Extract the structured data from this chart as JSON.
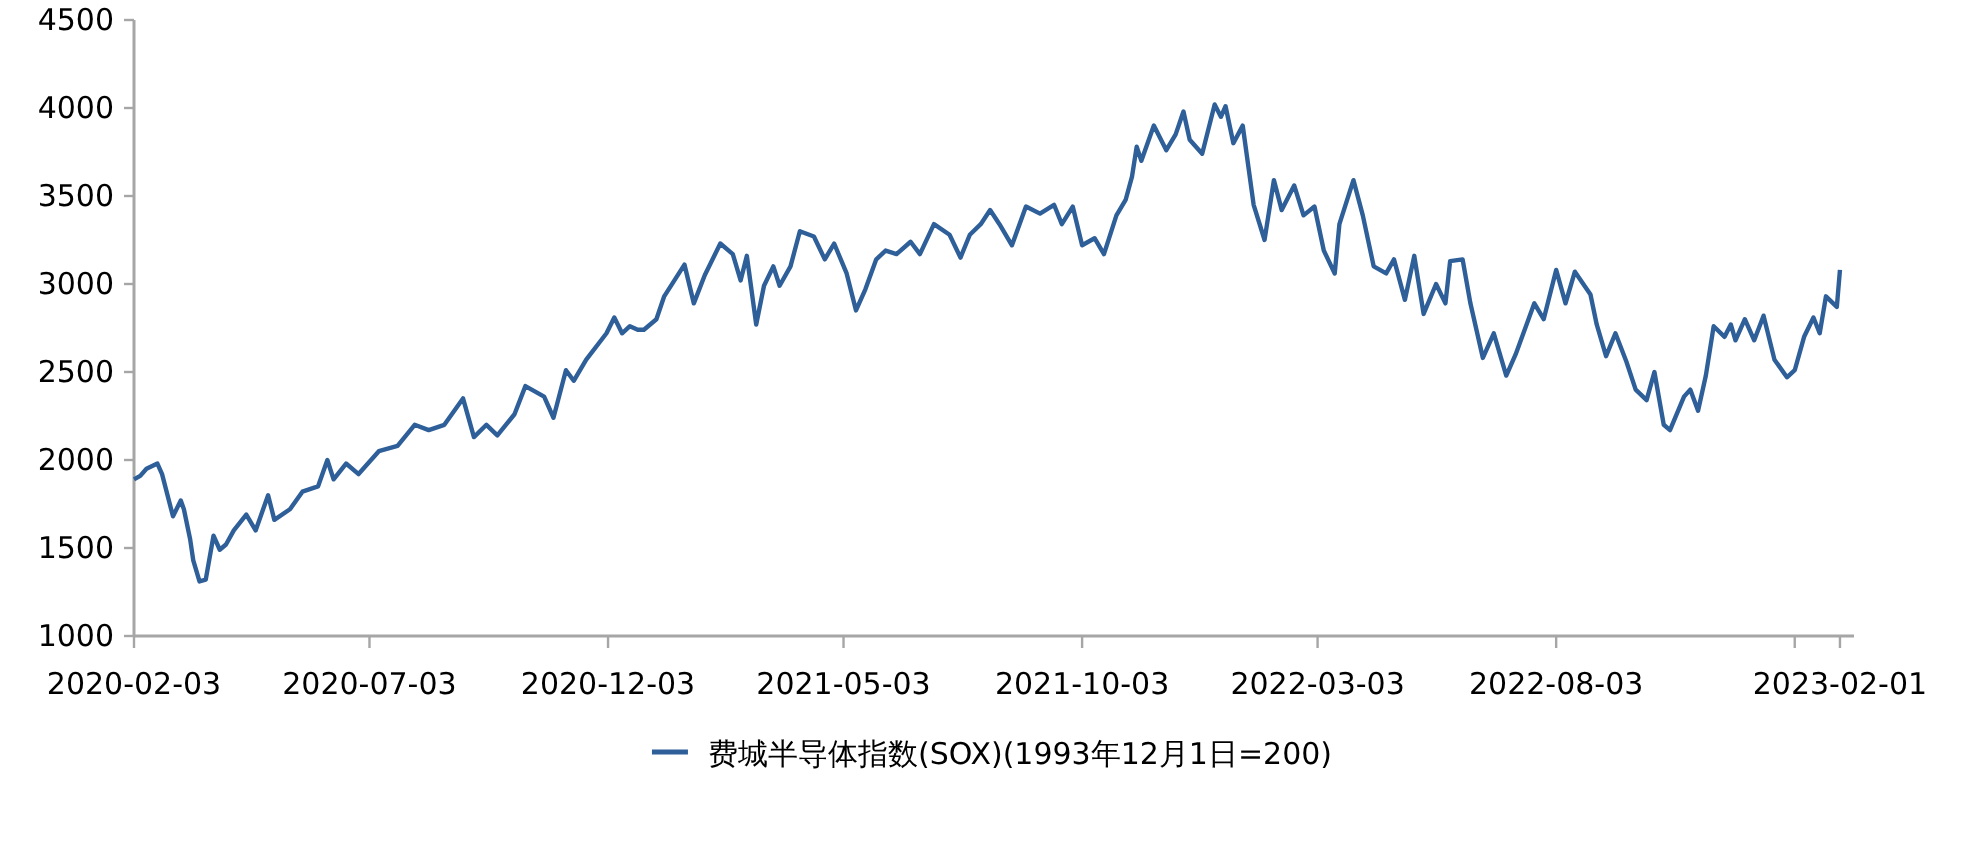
{
  "chart_data": {
    "type": "line",
    "legend": "bottom",
    "x": [
      "2020-02-03",
      "2020-02-07",
      "2020-02-11",
      "2020-02-18",
      "2020-02-21",
      "2020-02-28",
      "2020-03-04",
      "2020-03-06",
      "2020-03-10",
      "2020-03-12",
      "2020-03-16",
      "2020-03-20",
      "2020-03-25",
      "2020-03-29",
      "2020-04-02",
      "2020-04-07",
      "2020-04-15",
      "2020-04-21",
      "2020-04-29",
      "2020-05-03",
      "2020-05-13",
      "2020-05-21",
      "2020-05-31",
      "2020-06-06",
      "2020-06-10",
      "2020-06-18",
      "2020-06-26",
      "2020-07-09",
      "2020-07-21",
      "2020-08-01",
      "2020-08-10",
      "2020-08-20",
      "2020-09-01",
      "2020-09-08",
      "2020-09-16",
      "2020-09-23",
      "2020-10-04",
      "2020-10-11",
      "2020-10-23",
      "2020-10-29",
      "2020-11-06",
      "2020-11-11",
      "2020-11-19",
      "2020-12-02",
      "2020-12-07",
      "2020-12-12",
      "2020-12-17",
      "2020-12-22",
      "2020-12-26",
      "2021-01-03",
      "2021-01-08",
      "2021-01-21",
      "2021-01-27",
      "2021-02-03",
      "2021-02-13",
      "2021-02-21",
      "2021-02-26",
      "2021-03-02",
      "2021-03-08",
      "2021-03-13",
      "2021-03-19",
      "2021-03-23",
      "2021-03-30",
      "2021-04-05",
      "2021-04-14",
      "2021-04-21",
      "2021-04-27",
      "2021-05-05",
      "2021-05-11",
      "2021-05-17",
      "2021-05-24",
      "2021-05-30",
      "2021-06-06",
      "2021-06-15",
      "2021-06-21",
      "2021-06-30",
      "2021-07-10",
      "2021-07-17",
      "2021-07-23",
      "2021-07-30",
      "2021-08-05",
      "2021-08-11",
      "2021-08-19",
      "2021-08-28",
      "2021-09-06",
      "2021-09-15",
      "2021-09-20",
      "2021-09-27",
      "2021-10-03",
      "2021-10-11",
      "2021-10-17",
      "2021-10-25",
      "2021-10-31",
      "2021-11-04",
      "2021-11-07",
      "2021-11-10",
      "2021-11-18",
      "2021-11-26",
      "2021-12-02",
      "2021-12-07",
      "2021-12-11",
      "2021-12-19",
      "2021-12-27",
      "2021-12-31",
      "2022-01-03",
      "2022-01-08",
      "2022-01-14",
      "2022-01-21",
      "2022-01-28",
      "2022-02-03",
      "2022-02-08",
      "2022-02-16",
      "2022-02-22",
      "2022-03-01",
      "2022-03-07",
      "2022-03-14",
      "2022-03-17",
      "2022-03-26",
      "2022-04-01",
      "2022-04-08",
      "2022-04-16",
      "2022-04-21",
      "2022-04-28",
      "2022-05-04",
      "2022-05-10",
      "2022-05-18",
      "2022-05-24",
      "2022-05-27",
      "2022-06-04",
      "2022-06-09",
      "2022-06-17",
      "2022-06-24",
      "2022-07-02",
      "2022-07-08",
      "2022-07-20",
      "2022-07-26",
      "2022-08-03",
      "2022-08-09",
      "2022-08-15",
      "2022-08-25",
      "2022-08-29",
      "2022-09-04",
      "2022-09-10",
      "2022-09-17",
      "2022-09-23",
      "2022-09-30",
      "2022-10-05",
      "2022-10-11",
      "2022-10-15",
      "2022-10-24",
      "2022-10-28",
      "2022-11-02",
      "2022-11-07",
      "2022-11-12",
      "2022-11-19",
      "2022-11-23",
      "2022-11-26",
      "2022-12-02",
      "2022-12-08",
      "2022-12-14",
      "2022-12-21",
      "2022-12-29",
      "2023-01-03",
      "2023-01-09",
      "2023-01-15",
      "2023-01-19",
      "2023-01-23",
      "2023-01-30",
      "2023-02-01"
    ],
    "series": [
      {
        "name": "费城半导体指数(SOX)(1993年12月1日=200)",
        "color": "#2e5f99",
        "values": [
          1890,
          1910,
          1950,
          1980,
          1920,
          1680,
          1770,
          1720,
          1550,
          1430,
          1310,
          1320,
          1570,
          1490,
          1520,
          1600,
          1690,
          1600,
          1800,
          1660,
          1720,
          1820,
          1850,
          2000,
          1890,
          1980,
          1920,
          2050,
          2080,
          2200,
          2170,
          2200,
          2350,
          2130,
          2200,
          2140,
          2260,
          2420,
          2360,
          2240,
          2510,
          2450,
          2570,
          2720,
          2810,
          2720,
          2760,
          2740,
          2740,
          2800,
          2930,
          3110,
          2890,
          3050,
          3230,
          3170,
          3020,
          3160,
          2770,
          2990,
          3100,
          2990,
          3100,
          3300,
          3270,
          3140,
          3230,
          3060,
          2850,
          2970,
          3140,
          3190,
          3170,
          3240,
          3170,
          3340,
          3280,
          3150,
          3280,
          3340,
          3420,
          3340,
          3220,
          3440,
          3400,
          3450,
          3340,
          3440,
          3220,
          3260,
          3170,
          3390,
          3480,
          3610,
          3780,
          3700,
          3900,
          3760,
          3850,
          3980,
          3820,
          3740,
          4020,
          3950,
          4010,
          3800,
          3900,
          3450,
          3250,
          3590,
          3420,
          3560,
          3390,
          3440,
          3190,
          3060,
          3340,
          3590,
          3390,
          3100,
          3060,
          3140,
          2910,
          3160,
          2830,
          3000,
          2890,
          3130,
          3140,
          2890,
          2580,
          2720,
          2480,
          2600,
          2890,
          2800,
          3080,
          2890,
          3070,
          2940,
          2770,
          2590,
          2720,
          2560,
          2400,
          2340,
          2500,
          2200,
          2170,
          2360,
          2400,
          2280,
          2480,
          2760,
          2700,
          2770,
          2680,
          2800,
          2680,
          2820,
          2570,
          2470,
          2510,
          2700,
          2810,
          2720,
          2930,
          2870,
          3080
        ]
      }
    ],
    "xlim": [
      "2020-02-03",
      "2023-02-10"
    ],
    "xticks": [
      "2020-02-03",
      "2020-07-03",
      "2020-12-03",
      "2021-05-03",
      "2021-10-03",
      "2022-03-03",
      "2022-08-03",
      {
        "value": "2023-01-03",
        "label": null
      },
      "2023-02-01"
    ],
    "ylim": [
      1000,
      4500
    ],
    "yticks": [
      1000,
      1500,
      2000,
      2500,
      3000,
      3500,
      4000,
      4500
    ]
  }
}
